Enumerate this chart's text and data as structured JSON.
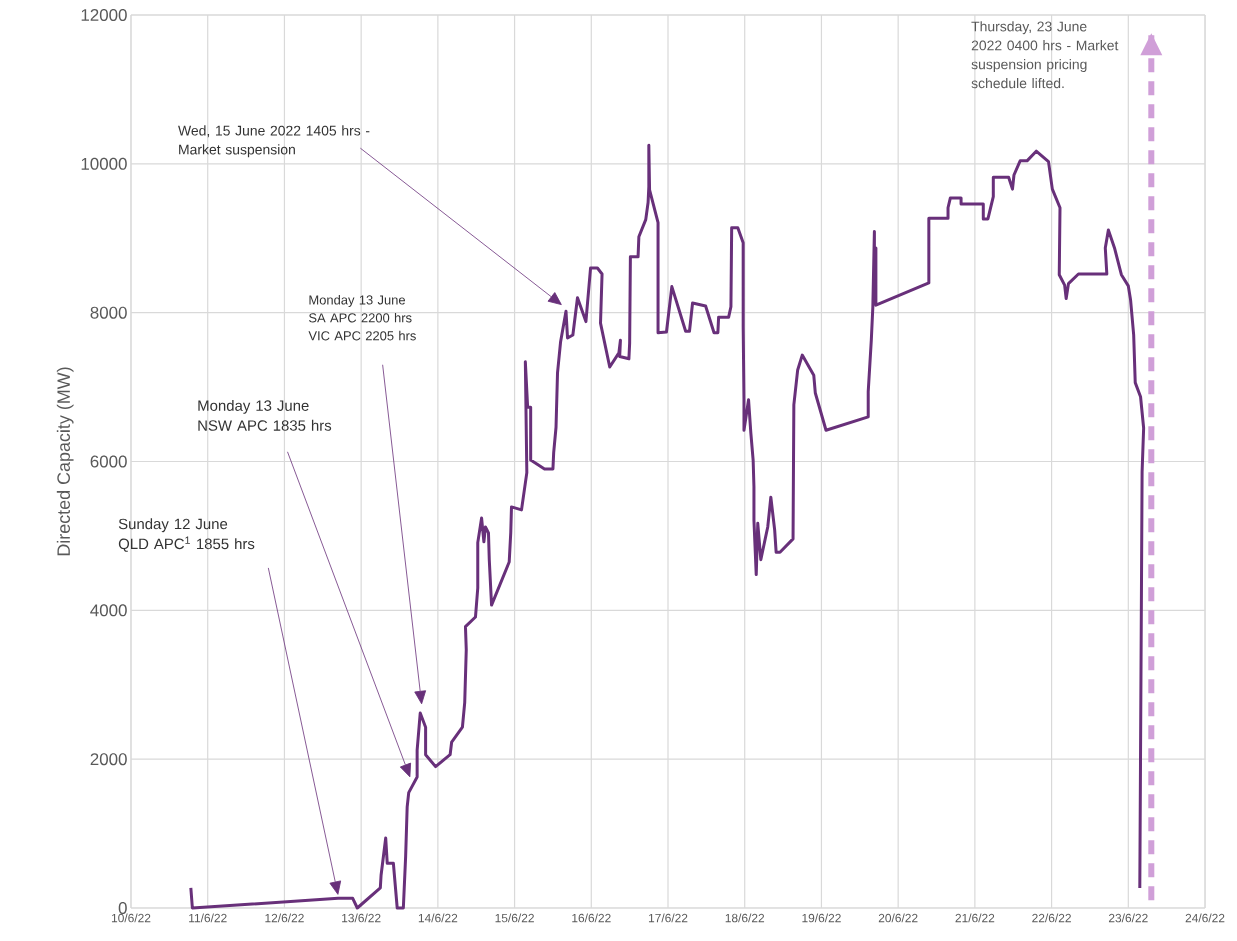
{
  "chart_data": {
    "type": "line",
    "ylabel": "Directed Capacity (MW)",
    "color": "#68307a",
    "grid": true,
    "marker": "none",
    "xlim": [
      "2022-06-10",
      "2022-06-24"
    ],
    "ylim": [
      0,
      12000
    ],
    "xticks": [
      {
        "value": "2022-06-10",
        "label": "10/6/22"
      },
      {
        "value": "2022-06-11",
        "label": "11/6/22"
      },
      {
        "value": "2022-06-12",
        "label": "12/6/22"
      },
      {
        "value": "2022-06-13",
        "label": "13/6/22"
      },
      {
        "value": "2022-06-14",
        "label": "14/6/22"
      },
      {
        "value": "2022-06-15",
        "label": "15/6/22"
      },
      {
        "value": "2022-06-16",
        "label": "16/6/22"
      },
      {
        "value": "2022-06-17",
        "label": "17/6/22"
      },
      {
        "value": "2022-06-18",
        "label": "18/6/22"
      },
      {
        "value": "2022-06-19",
        "label": "19/6/22"
      },
      {
        "value": "2022-06-20",
        "label": "20/6/22"
      },
      {
        "value": "2022-06-21",
        "label": "21/6/22"
      },
      {
        "value": "2022-06-22",
        "label": "22/6/22"
      },
      {
        "value": "2022-06-23",
        "label": "23/6/22"
      },
      {
        "value": "2022-06-24",
        "label": "24/6/22"
      }
    ],
    "yticks": [
      0,
      2000,
      4000,
      6000,
      8000,
      10000,
      12000
    ],
    "x": [
      "2022-06-10T18:43",
      "2022-06-10T19:12",
      "2022-06-12T16:48",
      "2022-06-12T21:22",
      "2022-06-12T22:48",
      "2022-06-13T06:00",
      "2022-06-13T06:14",
      "2022-06-13T07:41",
      "2022-06-13T08:10",
      "2022-06-13T10:05",
      "2022-06-13T11:17",
      "2022-06-13T13:12",
      "2022-06-13T13:55",
      "2022-06-13T14:24",
      "2022-06-13T14:53",
      "2022-06-13T17:31",
      "2022-06-13T17:31",
      "2022-06-13T18:29",
      "2022-06-13T20:10",
      "2022-06-13T20:10",
      "2022-06-13T23:17",
      "2022-06-14T03:50",
      "2022-06-14T04:19",
      "2022-06-14T07:41",
      "2022-06-14T08:24",
      "2022-06-14T08:53",
      "2022-06-14T08:38",
      "2022-06-14T11:46",
      "2022-06-14T12:29",
      "2022-06-14T12:29",
      "2022-06-14T13:41",
      "2022-06-14T14:24",
      "2022-06-14T14:53",
      "2022-06-14T15:50",
      "2022-06-14T16:05",
      "2022-06-14T16:48",
      "2022-06-14T22:19",
      "2022-06-14T22:48",
      "2022-06-14T23:02",
      "2022-06-15T02:10",
      "2022-06-15T03:50",
      "2022-06-15T03:22",
      "2022-06-15T04:05",
      "2022-06-15T05:02",
      "2022-06-15T05:02",
      "2022-06-15T09:22",
      "2022-06-15T12:00",
      "2022-06-15T12:14",
      "2022-06-15T12:58",
      "2022-06-15T13:26",
      "2022-06-15T14:24",
      "2022-06-15T16:05",
      "2022-06-15T16:34",
      "2022-06-15T18:14",
      "2022-06-15T19:41",
      "2022-06-15T22:19",
      "2022-06-15T23:46",
      "2022-06-16T01:55",
      "2022-06-16T03:22",
      "2022-06-16T02:53",
      "2022-06-16T05:46",
      "2022-06-16T08:38",
      "2022-06-16T09:07",
      "2022-06-16T08:53",
      "2022-06-16T11:46",
      "2022-06-16T12:00",
      "2022-06-16T12:14",
      "2022-06-16T14:38",
      "2022-06-16T14:53",
      "2022-06-16T17:02",
      "2022-06-16T17:46",
      "2022-06-16T18:00",
      "2022-06-16T18:00",
      "2022-06-16T18:14",
      "2022-06-16T20:53",
      "2022-06-16T20:53",
      "2022-06-16T23:31",
      "2022-06-17T01:12",
      "2022-06-17T05:31",
      "2022-06-17T06:43",
      "2022-06-17T07:41",
      "2022-06-17T11:46",
      "2022-06-17T14:24",
      "2022-06-17T15:36",
      "2022-06-17T15:50",
      "2022-06-17T18:58",
      "2022-06-17T19:41",
      "2022-06-17T19:55",
      "2022-06-17T21:50",
      "2022-06-17T23:31",
      "2022-06-17T23:31",
      "2022-06-17T23:46",
      "2022-06-17T23:46",
      "2022-06-18T01:12",
      "2022-06-18T01:55",
      "2022-06-18T02:38",
      "2022-06-18T02:53",
      "2022-06-18T02:53",
      "2022-06-18T03:36",
      "2022-06-18T04:05",
      "2022-06-18T05:02",
      "2022-06-18T07:12",
      "2022-06-18T08:10",
      "2022-06-18T09:22",
      "2022-06-18T09:50",
      "2022-06-18T11:02",
      "2022-06-18T15:07",
      "2022-06-18T15:22",
      "2022-06-18T16:34",
      "2022-06-18T18:00",
      "2022-06-18T21:36",
      "2022-06-18T22:05",
      "2022-06-19T01:26",
      "2022-06-19T14:38",
      "2022-06-19T14:38",
      "2022-06-19T15:36",
      "2022-06-19T16:05",
      "2022-06-19T16:34",
      "2022-06-19T16:34",
      "2022-06-19T17:02",
      "2022-06-19T17:02",
      "2022-06-20T09:36",
      "2022-06-20T09:36",
      "2022-06-20T15:36",
      "2022-06-20T15:36",
      "2022-06-20T16:19",
      "2022-06-20T19:41",
      "2022-06-20T19:41",
      "2022-06-21T02:38",
      "2022-06-21T02:38",
      "2022-06-21T04:05",
      "2022-06-21T05:46",
      "2022-06-21T05:46",
      "2022-06-21T10:34",
      "2022-06-21T11:46",
      "2022-06-21T12:14",
      "2022-06-21T14:10",
      "2022-06-21T16:19",
      "2022-06-21T19:12",
      "2022-06-21T23:02",
      "2022-06-22T00:14",
      "2022-06-22T02:38",
      "2022-06-22T02:24",
      "2022-06-22T04:05",
      "2022-06-22T04:34",
      "2022-06-22T05:17",
      "2022-06-22T08:24",
      "2022-06-22T17:17",
      "2022-06-22T16:48",
      "2022-06-22T17:46",
      "2022-06-22T19:41",
      "2022-06-22T21:50",
      "2022-06-23T00:00",
      "2022-06-23T00:43",
      "2022-06-23T01:41",
      "2022-06-23T02:10",
      "2022-06-23T03:50",
      "2022-06-23T04:48",
      "2022-06-23T04:19",
      "2022-06-23T03:36"
    ],
    "values": [
      270,
      0,
      130,
      130,
      0,
      270,
      440,
      940,
      600,
      600,
      0,
      0,
      690,
      1360,
      1550,
      1760,
      2120,
      2620,
      2430,
      2060,
      1900,
      2060,
      2230,
      2430,
      2760,
      3470,
      3780,
      3910,
      4300,
      4910,
      5240,
      4920,
      5120,
      5040,
      4680,
      4070,
      4650,
      5040,
      5390,
      5350,
      5850,
      7340,
      6730,
      6730,
      6020,
      5900,
      5900,
      6120,
      6460,
      7190,
      7610,
      8020,
      7660,
      7700,
      8200,
      7880,
      8600,
      8600,
      8520,
      7860,
      7270,
      7460,
      7630,
      7410,
      7380,
      7590,
      8750,
      8750,
      9020,
      9250,
      9480,
      9690,
      10250,
      9650,
      9210,
      7730,
      7740,
      8350,
      7750,
      7750,
      8130,
      8090,
      7730,
      7730,
      7940,
      7940,
      8080,
      9140,
      9140,
      8940,
      7810,
      6830,
      6420,
      6830,
      6380,
      6020,
      5660,
      5210,
      4480,
      5170,
      4680,
      5120,
      5520,
      5080,
      4780,
      4780,
      4960,
      6760,
      7230,
      7430,
      7160,
      6920,
      6420,
      6600,
      6940,
      7630,
      8080,
      9090,
      8130,
      8870,
      8100,
      8400,
      9270,
      9270,
      9410,
      9540,
      9540,
      9460,
      9460,
      9260,
      9260,
      9560,
      9820,
      9820,
      9660,
      9850,
      10040,
      10040,
      10170,
      10030,
      9660,
      9410,
      8510,
      8370,
      8190,
      8390,
      8520,
      8520,
      8870,
      9110,
      8870,
      8510,
      8360,
      8170,
      7700,
      7060,
      6870,
      6450,
      5860,
      270
    ],
    "ref_lines": [
      {
        "axis": "x",
        "value": "2022-06-23T07:12",
        "label": "Thursday, 23 June 2022 0400 hrs - Market suspension pricing schedule lifted.",
        "color": "#d09fd8",
        "line_style": "dashed"
      }
    ],
    "annotations": [
      "Sunday 12 June QLD APC$^{1}$ 1855 hrs",
      "Monday 13 June NSW APC 1835 hrs",
      "Monday 13 June SA APC 2200 hrs VIC APC 2205 hrs",
      "Wed, 15 June 2022 1405 hrs - Market suspension"
    ]
  }
}
